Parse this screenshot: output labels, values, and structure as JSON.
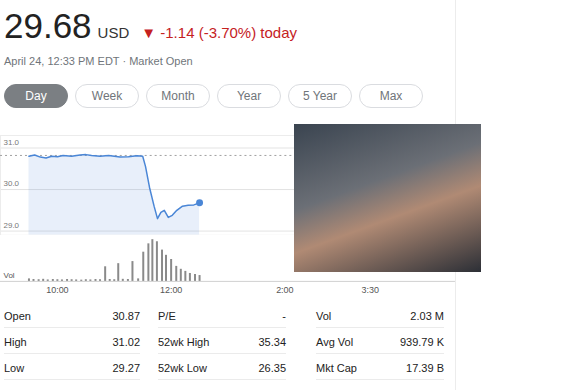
{
  "header": {
    "price": "29.68",
    "currency": "USD",
    "change": "▼ -1.14 (-3.70%) today",
    "timestamp": "April 24, 12:33 PM EDT · Market Open",
    "ranges": [
      "Day",
      "Week",
      "Month",
      "Year",
      "5 Year",
      "Max"
    ],
    "selected_range": "Day"
  },
  "chart_data": [
    {
      "type": "line",
      "color": "#4a86d6",
      "marker": "end",
      "grid": true,
      "tick_labels": "y",
      "previous_close": 30.82,
      "x": [
        9.5,
        9.6,
        9.7,
        9.8,
        9.9,
        10.0,
        10.1,
        10.25,
        10.4,
        10.5,
        10.6,
        10.75,
        10.9,
        11.0,
        11.1,
        11.25,
        11.4,
        11.5,
        11.55,
        11.62,
        11.7,
        11.76,
        11.82,
        11.88,
        11.95,
        12.02,
        12.1,
        12.2,
        12.3,
        12.4,
        12.5
      ],
      "values": [
        30.8,
        30.83,
        30.78,
        30.76,
        30.8,
        30.79,
        30.82,
        30.8,
        30.83,
        30.84,
        30.82,
        30.8,
        30.82,
        30.8,
        30.78,
        30.79,
        30.81,
        30.8,
        30.55,
        30.05,
        29.6,
        29.3,
        29.45,
        29.5,
        29.33,
        29.38,
        29.5,
        29.6,
        29.62,
        29.63,
        29.68
      ],
      "xlim": [
        9.0,
        17.0
      ],
      "ylim": [
        28.9,
        31.3
      ],
      "yticks": [
        {
          "value": 29,
          "label": "29.0"
        },
        {
          "value": 30,
          "label": "30.0"
        },
        {
          "value": 31,
          "label": "31.0"
        }
      ]
    },
    {
      "type": "bar",
      "ylabel": "Vol",
      "color": "#8a8a8a",
      "tick_labels": "x",
      "x": [
        9.5,
        9.58,
        9.67,
        9.75,
        9.83,
        9.92,
        10.0,
        10.08,
        10.17,
        10.25,
        10.33,
        10.42,
        10.5,
        10.58,
        10.67,
        10.75,
        10.84,
        10.92,
        11.0,
        11.07,
        11.15,
        11.24,
        11.32,
        11.42,
        11.51,
        11.6,
        11.67,
        11.75,
        11.84,
        11.91,
        12.0,
        12.09,
        12.17,
        12.25,
        12.33,
        12.42,
        12.5
      ],
      "values": [
        12000,
        9000,
        8000,
        10000,
        7000,
        9000,
        8000,
        7000,
        9000,
        8000,
        7000,
        6000,
        8000,
        7000,
        9000,
        8000,
        70000,
        9000,
        8000,
        85000,
        10000,
        9000,
        95000,
        12000,
        140000,
        180000,
        200000,
        190000,
        150000,
        125000,
        105000,
        72000,
        58000,
        48000,
        38000,
        33000,
        28000
      ],
      "xlim": [
        9.0,
        17.0
      ],
      "xticks": [
        {
          "value": 10,
          "label": "10:00"
        },
        {
          "value": 12,
          "label": "12:00"
        },
        {
          "value": 14,
          "label": "2:00"
        },
        {
          "value": 15.5,
          "label": "3:30"
        }
      ],
      "ylim": [
        0,
        220000
      ]
    }
  ],
  "stats": [
    [
      [
        "Open",
        "30.87"
      ],
      [
        "High",
        "31.02"
      ],
      [
        "Low",
        "29.27"
      ]
    ],
    [
      [
        "P/E",
        "-"
      ],
      [
        "52wk High",
        "35.34"
      ],
      [
        "52wk Low",
        "26.35"
      ]
    ],
    [
      [
        "Vol",
        "2.03 M"
      ],
      [
        "Avg Vol",
        "939.79 K"
      ],
      [
        "Mkt Cap",
        "17.39 B"
      ]
    ]
  ]
}
